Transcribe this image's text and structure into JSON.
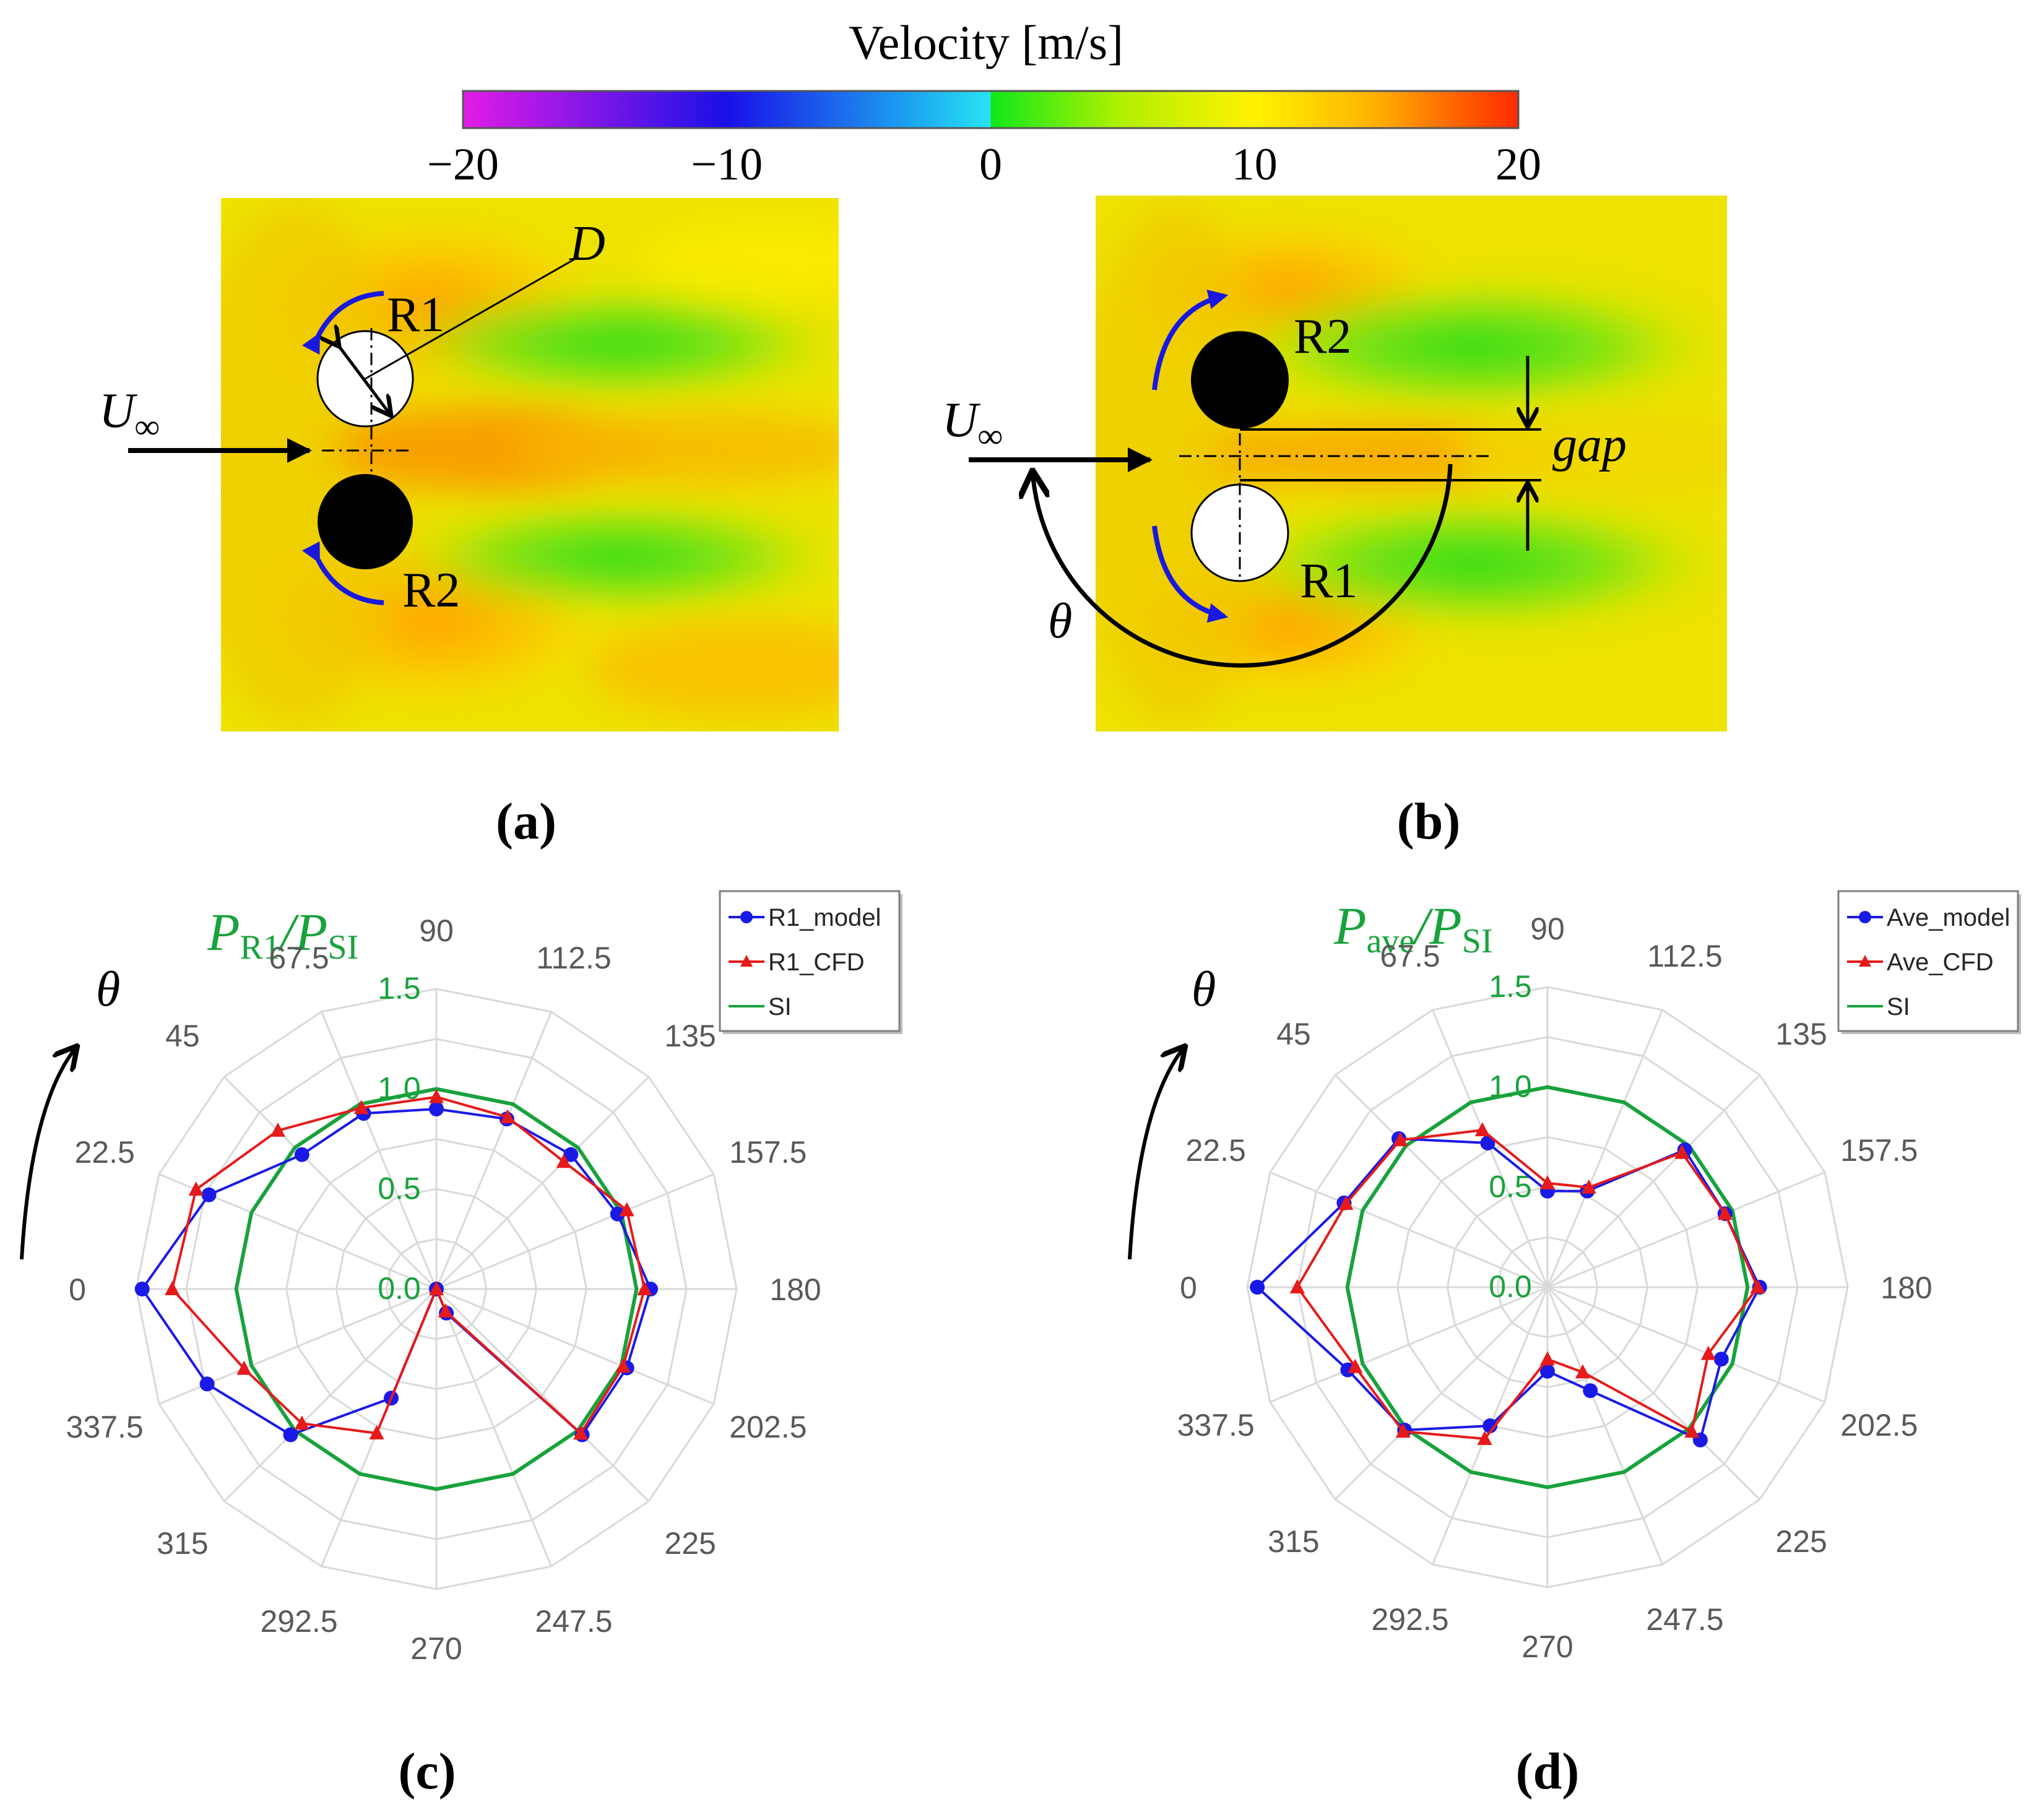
{
  "colorbar": {
    "title": "Velocity [m/s]",
    "tick_labels": [
      "−20",
      "−10",
      "0",
      "10",
      "20"
    ],
    "stops": [
      "#e21ce6",
      "#1a10e8",
      "#1ca0f0",
      "#28e4f4",
      "#0fe81a",
      "#aef000",
      "#fff200",
      "#ffb400",
      "#ff2a00"
    ]
  },
  "panel_a": {
    "label": "(a)",
    "rotor_top": "R1",
    "rotor_bottom": "R2",
    "diameter_label": "D",
    "inflow_label": "U",
    "inflow_sub": "∞"
  },
  "panel_b": {
    "label": "(b)",
    "rotor_top": "R2",
    "rotor_bottom": "R1",
    "gap_label": "gap",
    "angle_label": "θ",
    "inflow_label": "U",
    "inflow_sub": "∞"
  },
  "chart_data": [
    {
      "type": "radar",
      "panel_label": "(c)",
      "title_main": "P",
      "title_sub": "R1",
      "title_sep": "/P",
      "title_sub2": "SI",
      "theta_symbol": "θ",
      "categories": [
        "90",
        "112.5",
        "135",
        "157.5",
        "180",
        "202.5",
        "225",
        "247.5",
        "270",
        "292.5",
        "315",
        "337.5",
        "0",
        "22.5",
        "45",
        "67.5"
      ],
      "radial_ticks": [
        "0.0",
        "0.5",
        "1.0",
        "1.5"
      ],
      "rlim": [
        0,
        1.5
      ],
      "series": [
        {
          "name": "R1_model",
          "color": "#1a1ae6",
          "marker": "circle",
          "values": [
            0.9,
            0.92,
            0.95,
            0.98,
            1.07,
            1.03,
            1.03,
            0.13,
            0.0,
            0.59,
            1.03,
            1.24,
            1.47,
            1.23,
            0.95,
            0.95
          ]
        },
        {
          "name": "R1_CFD",
          "color": "#e61a1a",
          "marker": "triangle",
          "values": [
            0.96,
            0.93,
            0.9,
            1.03,
            1.04,
            1.01,
            1.02,
            0.12,
            0.0,
            0.78,
            0.95,
            1.04,
            1.32,
            1.3,
            1.12,
            0.98
          ]
        },
        {
          "name": "SI",
          "color": "#18a23c",
          "marker": "none",
          "values": [
            1,
            1,
            1,
            1,
            1,
            1,
            1,
            1,
            1,
            1,
            1,
            1,
            1,
            1,
            1,
            1
          ]
        }
      ]
    },
    {
      "type": "radar",
      "panel_label": "(d)",
      "title_main": "P",
      "title_sub": "ave",
      "title_sep": "/P",
      "title_sub2": "SI",
      "theta_symbol": "θ",
      "categories": [
        "90",
        "112.5",
        "135",
        "157.5",
        "180",
        "202.5",
        "225",
        "247.5",
        "270",
        "292.5",
        "315",
        "337.5",
        "0",
        "22.5",
        "45",
        "67.5"
      ],
      "radial_ticks": [
        "0.0",
        "0.5",
        "1.0",
        "1.5"
      ],
      "rlim": [
        0,
        1.5
      ],
      "series": [
        {
          "name": "Ave_model",
          "color": "#1a1ae6",
          "marker": "circle",
          "values": [
            0.48,
            0.52,
            0.97,
            0.96,
            1.06,
            0.94,
            1.08,
            0.56,
            0.42,
            0.75,
            1.01,
            1.08,
            1.45,
            1.1,
            1.05,
            0.78
          ]
        },
        {
          "name": "Ave_CFD",
          "color": "#e61a1a",
          "marker": "triangle",
          "values": [
            0.52,
            0.54,
            0.95,
            0.96,
            1.05,
            0.87,
            1.02,
            0.46,
            0.36,
            0.82,
            1.02,
            1.04,
            1.25,
            1.09,
            1.04,
            0.85
          ]
        },
        {
          "name": "SI",
          "color": "#18a23c",
          "marker": "none",
          "values": [
            1,
            1,
            1,
            1,
            1,
            1,
            1,
            1,
            1,
            1,
            1,
            1,
            1,
            1,
            1,
            1
          ]
        }
      ]
    }
  ]
}
